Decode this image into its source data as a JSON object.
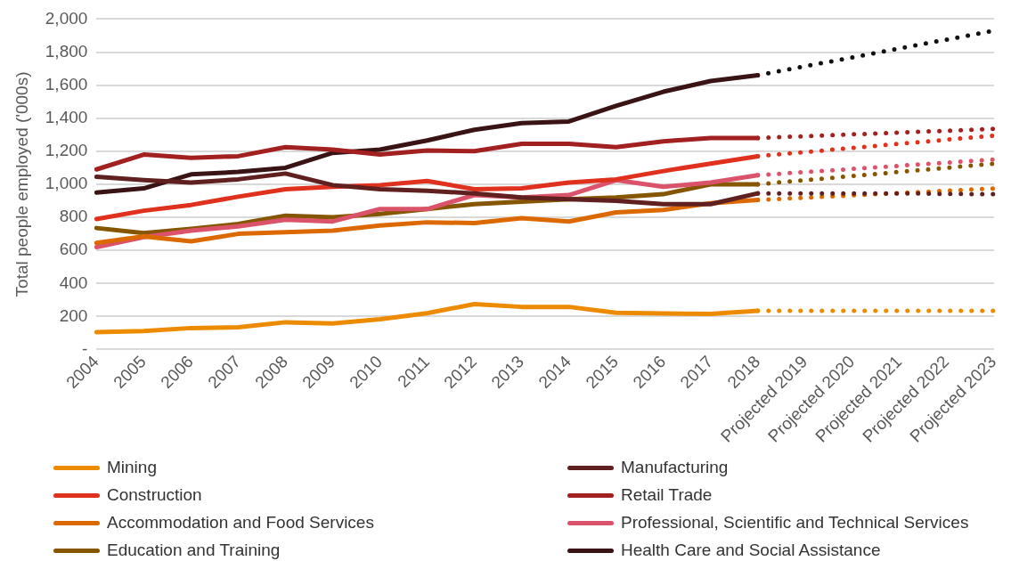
{
  "chart_data": {
    "type": "line",
    "ylabel": "Total people employed ('000s)",
    "categories": [
      "2004",
      "2005",
      "2006",
      "2007",
      "2008",
      "2009",
      "2010",
      "2011",
      "2012",
      "2013",
      "2014",
      "2015",
      "2016",
      "2017",
      "2018",
      "Projected 2019",
      "Projected 2020",
      "Projected 2021",
      "Projected 2022",
      "Projected 2023"
    ],
    "ylim": [
      0,
      2000
    ],
    "yticks": [
      {
        "value": 0,
        "label": "-"
      },
      {
        "value": 200,
        "label": "200"
      },
      {
        "value": 400,
        "label": "400"
      },
      {
        "value": 600,
        "label": "600"
      },
      {
        "value": 800,
        "label": "800"
      },
      {
        "value": 1000,
        "label": "1,000"
      },
      {
        "value": 1200,
        "label": "1,200"
      },
      {
        "value": 1400,
        "label": "1,400"
      },
      {
        "value": 1600,
        "label": "1,600"
      },
      {
        "value": 1800,
        "label": "1,800"
      },
      {
        "value": 2000,
        "label": "2,000"
      }
    ],
    "grid": "y",
    "legend": "bottom",
    "marker": "none",
    "series": [
      {
        "name": "Mining",
        "color": "#ed8b00",
        "line_style": "solid",
        "values": [
          105,
          112,
          130,
          135,
          165,
          158,
          183,
          220,
          275,
          258,
          258,
          222,
          218,
          215,
          235,
          null,
          null,
          null,
          null,
          null
        ]
      },
      {
        "name": "Manufacturing",
        "color": "#602020",
        "line_style": "solid",
        "values": [
          1045,
          1025,
          1010,
          1030,
          1065,
          995,
          970,
          960,
          945,
          920,
          910,
          900,
          880,
          880,
          945,
          null,
          null,
          null,
          null,
          null
        ]
      },
      {
        "name": "Construction",
        "color": "#e0301e",
        "line_style": "solid",
        "values": [
          790,
          840,
          875,
          925,
          970,
          985,
          995,
          1020,
          970,
          975,
          1010,
          1030,
          1080,
          1125,
          1170,
          null,
          null,
          null,
          null,
          null
        ]
      },
      {
        "name": "Retail Trade",
        "color": "#a32020",
        "line_style": "solid",
        "values": [
          1090,
          1180,
          1160,
          1170,
          1225,
          1210,
          1180,
          1205,
          1200,
          1245,
          1245,
          1225,
          1260,
          1280,
          1280,
          null,
          null,
          null,
          null,
          null
        ]
      },
      {
        "name": "Accommodation and Food Services",
        "color": "#dc6900",
        "line_style": "solid",
        "values": [
          645,
          685,
          655,
          700,
          710,
          720,
          750,
          770,
          765,
          795,
          775,
          830,
          845,
          885,
          905,
          null,
          null,
          null,
          null,
          null
        ]
      },
      {
        "name": "Professional, Scientific and Technical Services",
        "color": "#db536a",
        "line_style": "solid",
        "values": [
          620,
          680,
          720,
          745,
          785,
          775,
          850,
          850,
          935,
          920,
          935,
          1025,
          985,
          1010,
          1055,
          null,
          null,
          null,
          null,
          null
        ]
      },
      {
        "name": "Education and Training",
        "color": "#855500",
        "line_style": "solid",
        "values": [
          735,
          705,
          730,
          760,
          810,
          800,
          820,
          850,
          880,
          895,
          910,
          920,
          940,
          1000,
          1000,
          null,
          null,
          null,
          null,
          null
        ]
      },
      {
        "name": "Health Care and Social Assistance",
        "color": "#3a1414",
        "line_style": "solid",
        "values": [
          950,
          975,
          1060,
          1075,
          1100,
          1190,
          1210,
          1265,
          1330,
          1370,
          1380,
          1475,
          1560,
          1625,
          1660,
          null,
          null,
          null,
          null,
          null
        ]
      },
      {
        "color": "#ed8b00",
        "line_style": "dotted",
        "values": [
          null,
          null,
          null,
          null,
          null,
          null,
          null,
          null,
          null,
          null,
          null,
          null,
          null,
          null,
          235,
          235,
          235,
          235,
          235,
          235
        ]
      },
      {
        "color": "#602020",
        "line_style": "dotted",
        "values": [
          null,
          null,
          null,
          null,
          null,
          null,
          null,
          null,
          null,
          null,
          null,
          null,
          null,
          null,
          945,
          945,
          945,
          945,
          942,
          940
        ]
      },
      {
        "color": "#e0301e",
        "line_style": "dotted",
        "values": [
          null,
          null,
          null,
          null,
          null,
          null,
          null,
          null,
          null,
          null,
          null,
          null,
          null,
          null,
          1170,
          1195,
          1220,
          1245,
          1270,
          1295
        ]
      },
      {
        "color": "#a32020",
        "line_style": "dotted",
        "values": [
          null,
          null,
          null,
          null,
          null,
          null,
          null,
          null,
          null,
          null,
          null,
          null,
          null,
          null,
          1280,
          1291,
          1302,
          1313,
          1324,
          1335
        ]
      },
      {
        "color": "#dc6900",
        "line_style": "dotted",
        "values": [
          null,
          null,
          null,
          null,
          null,
          null,
          null,
          null,
          null,
          null,
          null,
          null,
          null,
          null,
          905,
          919,
          933,
          947,
          961,
          975
        ]
      },
      {
        "color": "#db536a",
        "line_style": "dotted",
        "values": [
          null,
          null,
          null,
          null,
          null,
          null,
          null,
          null,
          null,
          null,
          null,
          null,
          null,
          null,
          1055,
          1074,
          1093,
          1112,
          1131,
          1150
        ]
      },
      {
        "color": "#855500",
        "line_style": "dotted",
        "values": [
          null,
          null,
          null,
          null,
          null,
          null,
          null,
          null,
          null,
          null,
          null,
          null,
          null,
          null,
          1000,
          1025,
          1050,
          1075,
          1100,
          1125
        ]
      },
      {
        "color": "#111111",
        "line_style": "dotted",
        "values": [
          null,
          null,
          null,
          null,
          null,
          null,
          null,
          null,
          null,
          null,
          null,
          null,
          null,
          null,
          1660,
          1714,
          1768,
          1822,
          1876,
          1930
        ]
      }
    ]
  }
}
